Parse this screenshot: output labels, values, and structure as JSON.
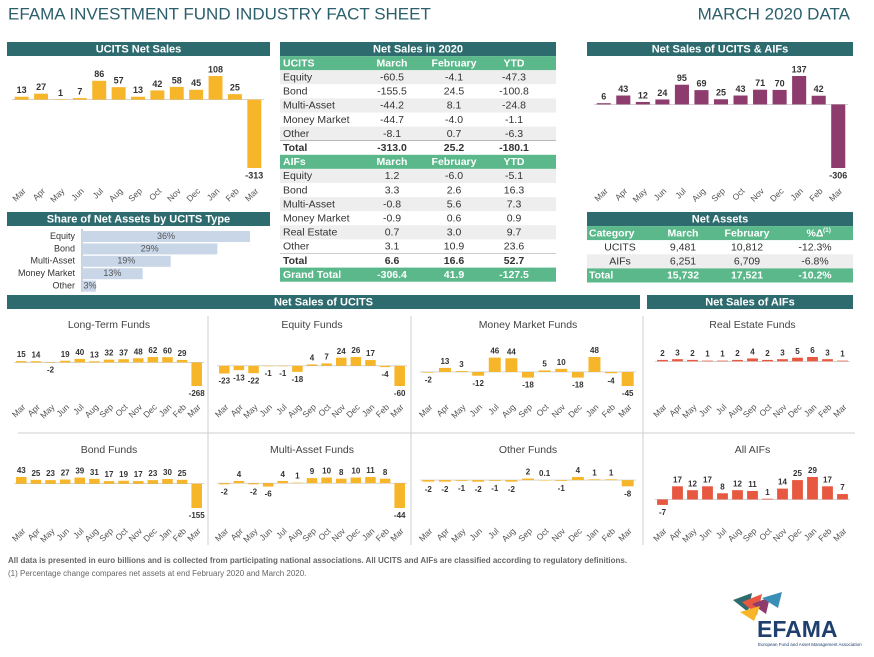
{
  "header": {
    "title": "EFAMA INVESTMENT FUND INDUSTRY FACT SHEET",
    "date": "MARCH 2020 DATA"
  },
  "sections": [
    "Net Sales of UCITS",
    "Net Sales of AIFs"
  ],
  "chart_data": [
    {
      "type": "bar",
      "title": "UCITS Net Sales",
      "color": "#f7b529",
      "categories": [
        "Mar",
        "Apr",
        "May",
        "Jun",
        "Jul",
        "Aug",
        "Sep",
        "Oct",
        "Nov",
        "Dec",
        "Jan",
        "Feb",
        "Mar"
      ],
      "values": [
        13,
        27,
        1,
        7,
        86,
        57,
        13,
        42,
        58,
        45,
        108,
        25,
        -313
      ]
    },
    {
      "type": "hbar",
      "title": "Share of Net Assets by UCITS Type",
      "color": "#c8d6e8",
      "categories": [
        "Equity",
        "Bond",
        "Multi-Asset",
        "Money Market",
        "Other"
      ],
      "values": [
        36,
        29,
        19,
        13,
        3
      ],
      "value_labels": [
        "36%",
        "29%",
        "19%",
        "13%",
        "3%"
      ]
    },
    {
      "type": "bar",
      "title": "Net Sales of UCITS & AIFs",
      "color": "#8e3b6e",
      "categories": [
        "Mar",
        "Apr",
        "May",
        "Jun",
        "Jul",
        "Aug",
        "Sep",
        "Oct",
        "Nov",
        "Dec",
        "Jan",
        "Feb",
        "Mar"
      ],
      "values": [
        6,
        43,
        12,
        24,
        95,
        69,
        25,
        43,
        71,
        70,
        137,
        42,
        -306
      ]
    },
    {
      "type": "bar",
      "title": "Long-Term Funds",
      "color": "#f7b529",
      "categories": [
        "Mar",
        "Apr",
        "May",
        "Jun",
        "Jul",
        "Aug",
        "Sep",
        "Oct",
        "Nov",
        "Dec",
        "Jan",
        "Feb",
        "Mar"
      ],
      "values": [
        15,
        14,
        -2,
        19,
        40,
        13,
        32,
        37,
        48,
        62,
        60,
        29,
        -268
      ]
    },
    {
      "type": "bar",
      "title": "Equity Funds",
      "color": "#f7b529",
      "categories": [
        "Mar",
        "Apr",
        "May",
        "Jun",
        "Jul",
        "Aug",
        "Sep",
        "Oct",
        "Nov",
        "Dec",
        "Jan",
        "Feb",
        "Mar"
      ],
      "values": [
        -23,
        -13,
        -22,
        -1,
        -1,
        -18,
        4,
        7,
        24,
        26,
        17,
        -4,
        -60
      ]
    },
    {
      "type": "bar",
      "title": "Money Market Funds",
      "color": "#f7b529",
      "categories": [
        "Mar",
        "Apr",
        "May",
        "Jun",
        "Jul",
        "Aug",
        "Sep",
        "Oct",
        "Nov",
        "Dec",
        "Jan",
        "Feb",
        "Mar"
      ],
      "values": [
        -2,
        13,
        3,
        -12,
        46,
        44,
        -18,
        5,
        10,
        -18,
        48,
        -4,
        -45
      ]
    },
    {
      "type": "bar",
      "title": "Real Estate Funds",
      "color": "#e8573f",
      "categories": [
        "Mar",
        "Apr",
        "May",
        "Jun",
        "Jul",
        "Aug",
        "Sep",
        "Oct",
        "Nov",
        "Dec",
        "Jan",
        "Feb",
        "Mar"
      ],
      "values": [
        2,
        3,
        2,
        1,
        1,
        2,
        4,
        2,
        3,
        5,
        6,
        3,
        1
      ]
    },
    {
      "type": "bar",
      "title": "Bond Funds",
      "color": "#f7b529",
      "categories": [
        "Mar",
        "Apr",
        "May",
        "Jun",
        "Jul",
        "Aug",
        "Sep",
        "Oct",
        "Nov",
        "Dec",
        "Jan",
        "Feb",
        "Mar"
      ],
      "values": [
        43,
        25,
        23,
        27,
        39,
        31,
        17,
        19,
        17,
        23,
        30,
        25,
        -155
      ]
    },
    {
      "type": "bar",
      "title": "Multi-Asset Funds",
      "color": "#f7b529",
      "categories": [
        "Mar",
        "Apr",
        "May",
        "Jun",
        "Jul",
        "Aug",
        "Sep",
        "Oct",
        "Nov",
        "Dec",
        "Jan",
        "Feb",
        "Mar"
      ],
      "values": [
        -2,
        4,
        -2,
        -6,
        4,
        1,
        9,
        10,
        8,
        10,
        11,
        8,
        -44
      ]
    },
    {
      "type": "bar",
      "title": "Other Funds",
      "color": "#f7b529",
      "categories": [
        "Mar",
        "Apr",
        "May",
        "Jun",
        "Jul",
        "Aug",
        "Sep",
        "Oct",
        "Nov",
        "Dec",
        "Jan",
        "Feb",
        "Mar"
      ],
      "values": [
        -2,
        -2,
        -1,
        -2,
        -1,
        -2,
        2,
        0.1,
        -1,
        4,
        1,
        1,
        -8
      ]
    },
    {
      "type": "bar",
      "title": "All AIFs",
      "color": "#e8573f",
      "categories": [
        "Mar",
        "Apr",
        "May",
        "Jun",
        "Jul",
        "Aug",
        "Sep",
        "Oct",
        "Nov",
        "Dec",
        "Jan",
        "Feb",
        "Mar"
      ],
      "values": [
        -7,
        17,
        12,
        17,
        8,
        12,
        11,
        1,
        14,
        25,
        29,
        17,
        7
      ]
    }
  ],
  "net_sales_table": {
    "title": "Net Sales in 2020",
    "sections": [
      {
        "header": [
          "UCITS",
          "March",
          "February",
          "YTD"
        ],
        "rows": [
          [
            "Equity",
            "-60.5",
            "-4.1",
            "-47.3"
          ],
          [
            "Bond",
            "-155.5",
            "24.5",
            "-100.8"
          ],
          [
            "Multi-Asset",
            "-44.2",
            "8.1",
            "-24.8"
          ],
          [
            "Money Market",
            "-44.7",
            "-4.0",
            "-1.1"
          ],
          [
            "Other",
            "-8.1",
            "0.7",
            "-6.3"
          ],
          [
            "Total",
            "-313.0",
            "25.2",
            "-180.1"
          ]
        ]
      },
      {
        "header": [
          "AIFs",
          "March",
          "February",
          "YTD"
        ],
        "rows": [
          [
            "Equity",
            "1.2",
            "-6.0",
            "-5.1"
          ],
          [
            "Bond",
            "3.3",
            "2.6",
            "16.3"
          ],
          [
            "Multi-Asset",
            "-0.8",
            "5.6",
            "7.3"
          ],
          [
            "Money Market",
            "-0.9",
            "0.6",
            "0.9"
          ],
          [
            "Real Estate",
            "0.7",
            "3.0",
            "9.7"
          ],
          [
            "Other",
            "3.1",
            "10.9",
            "23.6"
          ],
          [
            "Total",
            "6.6",
            "16.6",
            "52.7"
          ]
        ]
      }
    ],
    "grand_total": [
      "Grand Total",
      "-306.4",
      "41.9",
      "-127.5"
    ]
  },
  "net_assets_table": {
    "title": "Net Assets",
    "header": [
      "Category",
      "March",
      "February",
      "%Δ"
    ],
    "header_note": "(1)",
    "rows": [
      [
        "UCITS",
        "9,481",
        "10,812",
        "-12.3%"
      ],
      [
        "AIFs",
        "6,251",
        "6,709",
        "-6.8%"
      ]
    ],
    "total": [
      "Total",
      "15,732",
      "17,521",
      "-10.2%"
    ]
  },
  "footnotes": [
    "All data is presented in euro billions and is collected from participating national associations. All UCITS and AIFs are classified according to regulatory definitions.",
    "(1) Percentage change compares net assets at end February 2020 and March 2020."
  ],
  "logo": {
    "name": "EFAMA",
    "tagline": "European Fund and Asset Management Association"
  }
}
